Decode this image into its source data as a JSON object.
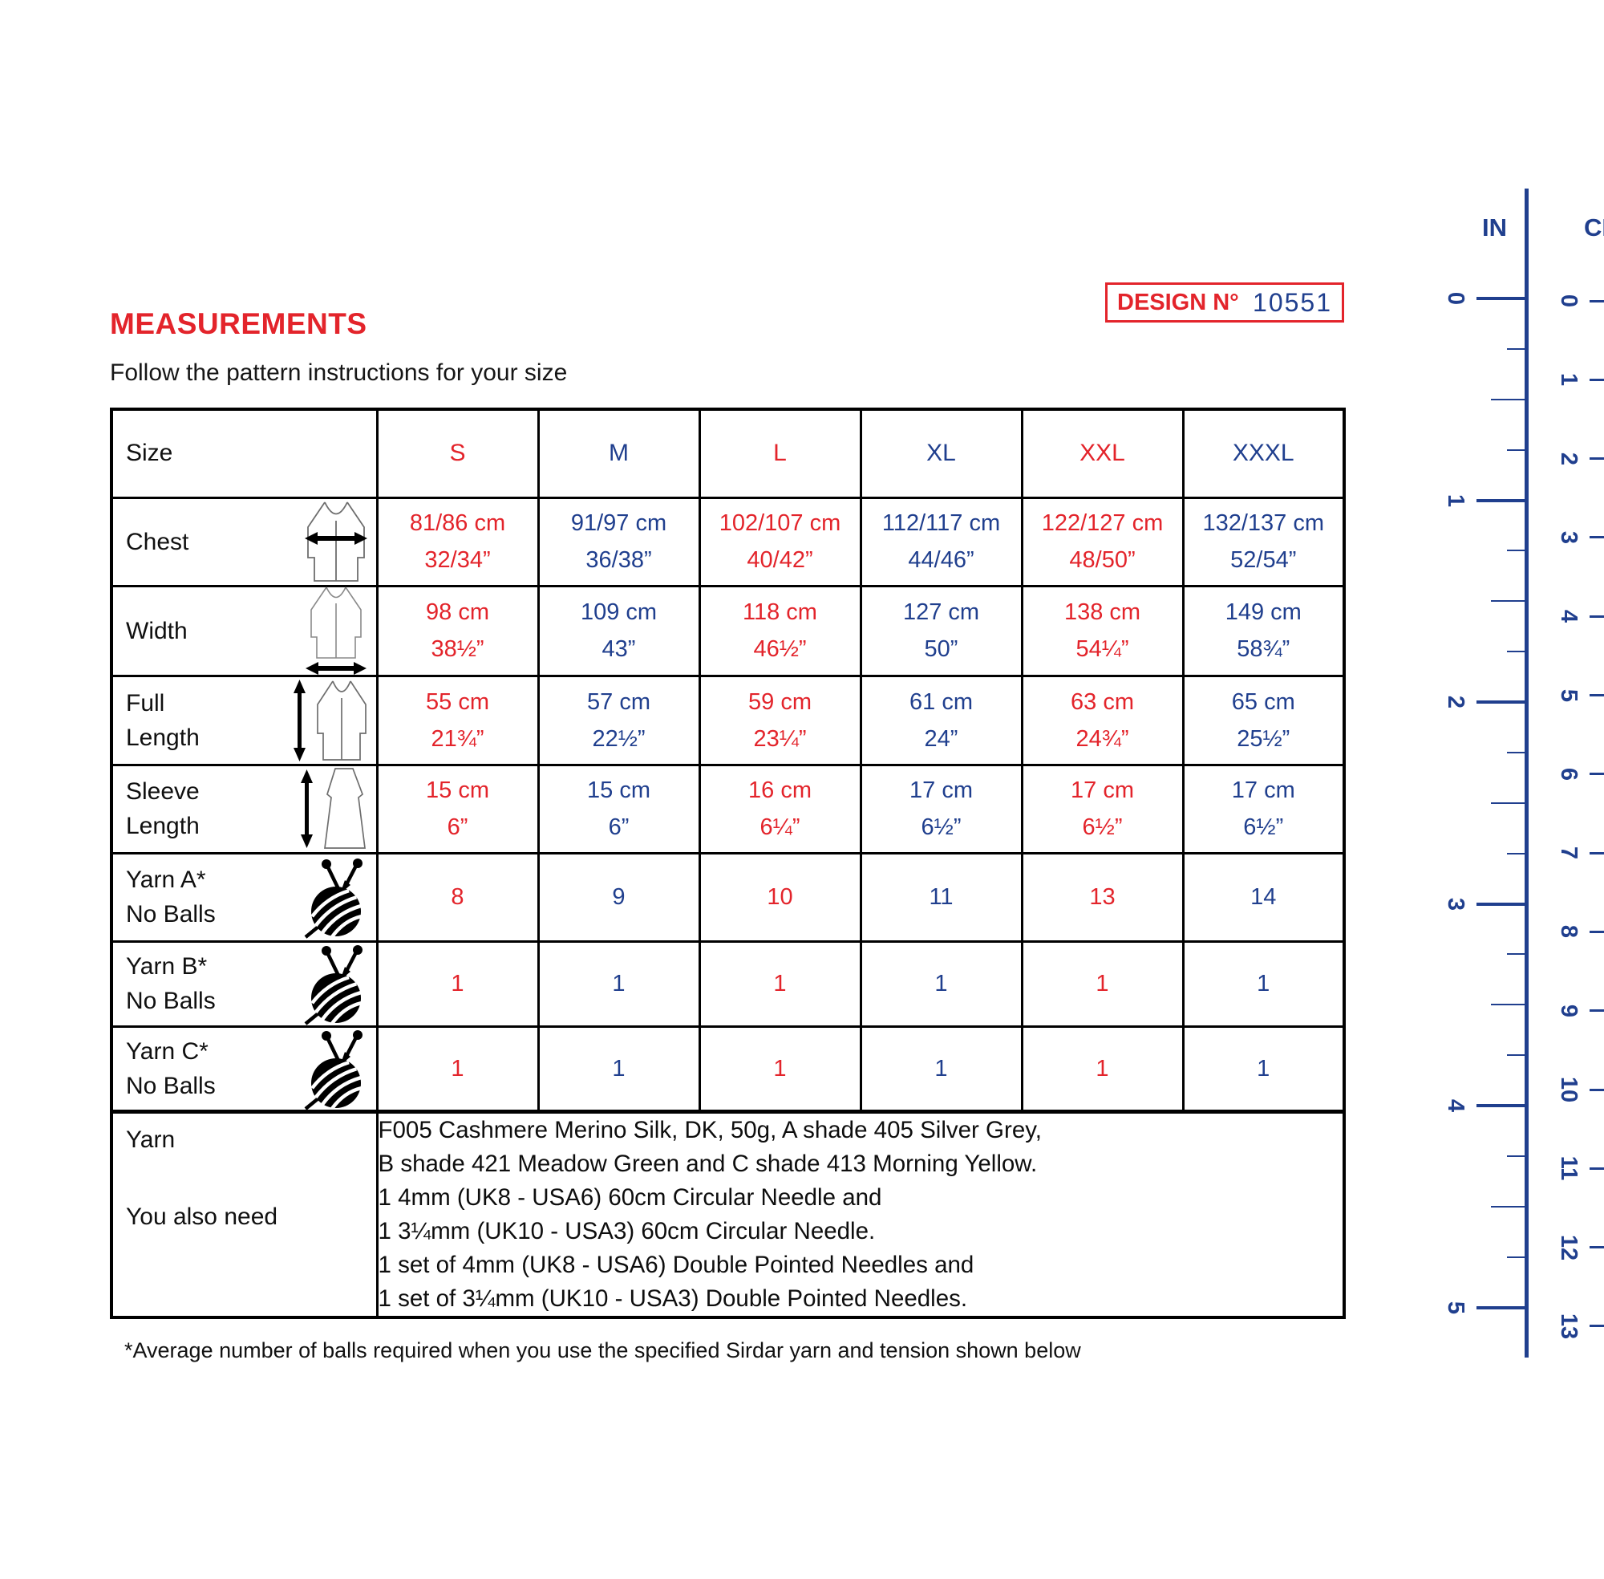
{
  "page": {
    "title": "MEASUREMENTS",
    "subtitle": "Follow the pattern instructions for your size",
    "design_label": "DESIGN N°",
    "design_number": "10551",
    "footnote": "*Average number of balls required when you use the specified Sirdar yarn and tension shown below"
  },
  "colors": {
    "red": "#e3242b",
    "blue": "#203f8e"
  },
  "table": {
    "size_label": "Size",
    "sizes": [
      {
        "label": "S",
        "color": "red"
      },
      {
        "label": "M",
        "color": "blue"
      },
      {
        "label": "L",
        "color": "red"
      },
      {
        "label": "XL",
        "color": "blue"
      },
      {
        "label": "XXL",
        "color": "red"
      },
      {
        "label": "XXXL",
        "color": "blue"
      }
    ],
    "rows": [
      {
        "label_lines": [
          "Chest"
        ],
        "icon": "jacket-chest",
        "values": [
          [
            "81/86 cm",
            "32/34”"
          ],
          [
            "91/97 cm",
            "36/38”"
          ],
          [
            "102/107 cm",
            "40/42”"
          ],
          [
            "112/117 cm",
            "44/46”"
          ],
          [
            "122/127 cm",
            "48/50”"
          ],
          [
            "132/137 cm",
            "52/54”"
          ]
        ]
      },
      {
        "label_lines": [
          "Width"
        ],
        "icon": "jacket-width",
        "values": [
          [
            "98 cm",
            "38½”"
          ],
          [
            "109 cm",
            "43”"
          ],
          [
            "118 cm",
            "46½”"
          ],
          [
            "127 cm",
            "50”"
          ],
          [
            "138 cm",
            "54¼”"
          ],
          [
            "149 cm",
            "58¾”"
          ]
        ]
      },
      {
        "label_lines": [
          "Full",
          "Length"
        ],
        "icon": "jacket-length",
        "values": [
          [
            "55 cm",
            "21¾”"
          ],
          [
            "57 cm",
            "22½”"
          ],
          [
            "59 cm",
            "23¼”"
          ],
          [
            "61 cm",
            "24”"
          ],
          [
            "63 cm",
            "24¾”"
          ],
          [
            "65 cm",
            "25½”"
          ]
        ]
      },
      {
        "label_lines": [
          "Sleeve",
          "Length"
        ],
        "icon": "sleeve",
        "values": [
          [
            "15 cm",
            "6”"
          ],
          [
            "15 cm",
            "6”"
          ],
          [
            "16 cm",
            "6¼”"
          ],
          [
            "17 cm",
            "6½”"
          ],
          [
            "17 cm",
            "6½”"
          ],
          [
            "17 cm",
            "6½”"
          ]
        ]
      },
      {
        "label_lines": [
          "Yarn A*",
          "No Balls"
        ],
        "icon": "yarn-ball",
        "values": [
          [
            "8"
          ],
          [
            "9"
          ],
          [
            "10"
          ],
          [
            "11"
          ],
          [
            "13"
          ],
          [
            "14"
          ]
        ]
      },
      {
        "label_lines": [
          "Yarn B*",
          "No Balls"
        ],
        "icon": "yarn-ball",
        "values": [
          [
            "1"
          ],
          [
            "1"
          ],
          [
            "1"
          ],
          [
            "1"
          ],
          [
            "1"
          ],
          [
            "1"
          ]
        ]
      },
      {
        "label_lines": [
          "Yarn C*",
          "No Balls"
        ],
        "icon": "yarn-ball",
        "values": [
          [
            "1"
          ],
          [
            "1"
          ],
          [
            "1"
          ],
          [
            "1"
          ],
          [
            "1"
          ],
          [
            "1"
          ]
        ]
      }
    ],
    "yarn_row": {
      "label1": "Yarn",
      "label2": "You also need",
      "lines": [
        "F005 Cashmere Merino Silk, DK, 50g, A shade 405 Silver Grey,",
        "B shade 421 Meadow Green and C shade 413 Morning Yellow.",
        "1 4mm (UK8 - USA6) 60cm Circular Needle and",
        "1 3¼mm (UK10 - USA3) 60cm Circular Needle.",
        "1 set of 4mm (UK8 - USA6) Double Pointed Needles and",
        "1 set of 3¼mm (UK10 - USA3) Double Pointed Needles."
      ]
    }
  },
  "ruler": {
    "in_label": "IN",
    "cm_label": "CM",
    "in_ticks": [
      "0",
      "1",
      "2",
      "3",
      "4",
      "5"
    ],
    "cm_ticks": [
      "0",
      "1",
      "2",
      "3",
      "4",
      "5",
      "6",
      "7",
      "8",
      "9",
      "10",
      "11",
      "12",
      "13"
    ]
  }
}
